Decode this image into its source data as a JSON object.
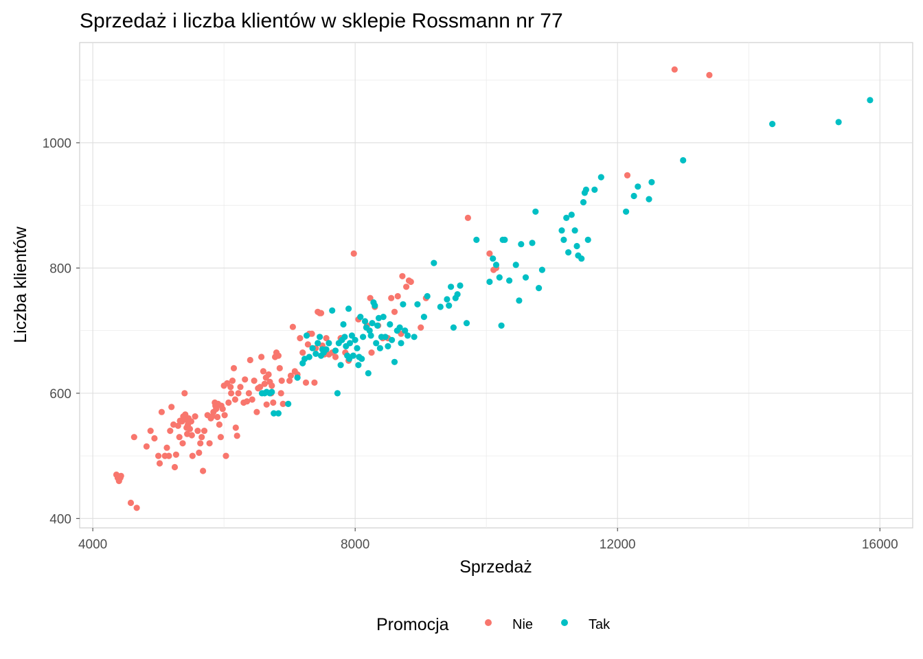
{
  "chart_data": {
    "type": "scatter",
    "title": "Sprzedaż i liczba klientów w sklepie Rossmann nr 77",
    "xlabel": "Sprzedaż",
    "ylabel": "Liczba klientów",
    "xlim": [
      3800,
      16500
    ],
    "ylim": [
      385,
      1160
    ],
    "x_ticks": [
      4000,
      8000,
      12000,
      16000
    ],
    "y_ticks": [
      400,
      600,
      800,
      1000
    ],
    "x_tick_labels": [
      "4000",
      "8000",
      "12000",
      "16000"
    ],
    "y_tick_labels": [
      "400",
      "600",
      "800",
      "1000"
    ],
    "grid": true,
    "legend": {
      "title": "Promocja",
      "position": "bottom",
      "entries": [
        {
          "label": "Nie",
          "color": "#F8766D"
        },
        {
          "label": "Tak",
          "color": "#00BFC4"
        }
      ]
    },
    "series": [
      {
        "name": "Nie",
        "color": "#F8766D",
        "points": [
          [
            4360,
            470
          ],
          [
            4400,
            460
          ],
          [
            4420,
            465
          ],
          [
            4430,
            468
          ],
          [
            4380,
            465
          ],
          [
            4580,
            425
          ],
          [
            4670,
            417
          ],
          [
            4630,
            530
          ],
          [
            4820,
            515
          ],
          [
            4880,
            540
          ],
          [
            4940,
            528
          ],
          [
            5000,
            500
          ],
          [
            5020,
            488
          ],
          [
            5050,
            570
          ],
          [
            5100,
            500
          ],
          [
            5130,
            513
          ],
          [
            5160,
            500
          ],
          [
            5180,
            540
          ],
          [
            5200,
            578
          ],
          [
            5230,
            550
          ],
          [
            5250,
            482
          ],
          [
            5270,
            502
          ],
          [
            5300,
            548
          ],
          [
            5320,
            530
          ],
          [
            5330,
            556
          ],
          [
            5360,
            555
          ],
          [
            5370,
            520
          ],
          [
            5380,
            563
          ],
          [
            5400,
            600
          ],
          [
            5410,
            566
          ],
          [
            5420,
            558
          ],
          [
            5430,
            545
          ],
          [
            5440,
            535
          ],
          [
            5450,
            550
          ],
          [
            5460,
            560
          ],
          [
            5480,
            543
          ],
          [
            5500,
            555
          ],
          [
            5510,
            533
          ],
          [
            5520,
            500
          ],
          [
            5560,
            563
          ],
          [
            5600,
            540
          ],
          [
            5620,
            505
          ],
          [
            5640,
            520
          ],
          [
            5660,
            530
          ],
          [
            5680,
            476
          ],
          [
            5700,
            540
          ],
          [
            5750,
            565
          ],
          [
            5780,
            520
          ],
          [
            5800,
            560
          ],
          [
            5820,
            563
          ],
          [
            5840,
            570
          ],
          [
            5860,
            585
          ],
          [
            5870,
            580
          ],
          [
            5880,
            575
          ],
          [
            5900,
            562
          ],
          [
            5910,
            583
          ],
          [
            5930,
            550
          ],
          [
            5950,
            530
          ],
          [
            5960,
            580
          ],
          [
            5980,
            575
          ],
          [
            6000,
            612
          ],
          [
            6010,
            565
          ],
          [
            6030,
            500
          ],
          [
            6050,
            616
          ],
          [
            6070,
            585
          ],
          [
            6100,
            610
          ],
          [
            6110,
            600
          ],
          [
            6130,
            620
          ],
          [
            6150,
            640
          ],
          [
            6170,
            590
          ],
          [
            6180,
            545
          ],
          [
            6200,
            532
          ],
          [
            6220,
            600
          ],
          [
            6250,
            610
          ],
          [
            6300,
            585
          ],
          [
            6320,
            622
          ],
          [
            6350,
            587
          ],
          [
            6380,
            600
          ],
          [
            6400,
            653
          ],
          [
            6430,
            590
          ],
          [
            6460,
            620
          ],
          [
            6500,
            570
          ],
          [
            6520,
            608
          ],
          [
            6550,
            610
          ],
          [
            6570,
            658
          ],
          [
            6600,
            635
          ],
          [
            6620,
            615
          ],
          [
            6640,
            625
          ],
          [
            6650,
            582
          ],
          [
            6680,
            630
          ],
          [
            6700,
            618
          ],
          [
            6720,
            600
          ],
          [
            6730,
            612
          ],
          [
            6750,
            585
          ],
          [
            6780,
            658
          ],
          [
            6800,
            665
          ],
          [
            6830,
            660
          ],
          [
            6850,
            640
          ],
          [
            6870,
            600
          ],
          [
            6880,
            620
          ],
          [
            6900,
            583
          ],
          [
            7000,
            620
          ],
          [
            7020,
            628
          ],
          [
            7050,
            706
          ],
          [
            7080,
            635
          ],
          [
            7120,
            630
          ],
          [
            7160,
            688
          ],
          [
            7200,
            665
          ],
          [
            7250,
            617
          ],
          [
            7280,
            678
          ],
          [
            7300,
            695
          ],
          [
            7340,
            695
          ],
          [
            7380,
            617
          ],
          [
            7400,
            672
          ],
          [
            7430,
            730
          ],
          [
            7460,
            728
          ],
          [
            7480,
            728
          ],
          [
            7500,
            676
          ],
          [
            7530,
            662
          ],
          [
            7560,
            688
          ],
          [
            7600,
            662
          ],
          [
            7650,
            665
          ],
          [
            7700,
            658
          ],
          [
            7780,
            688
          ],
          [
            7850,
            665
          ],
          [
            7900,
            652
          ],
          [
            7980,
            823
          ],
          [
            8050,
            718
          ],
          [
            8180,
            708
          ],
          [
            8230,
            752
          ],
          [
            8250,
            665
          ],
          [
            8300,
            738
          ],
          [
            8350,
            708
          ],
          [
            8420,
            688
          ],
          [
            8500,
            688
          ],
          [
            8550,
            752
          ],
          [
            8600,
            730
          ],
          [
            8650,
            755
          ],
          [
            8700,
            695
          ],
          [
            8720,
            787
          ],
          [
            8780,
            770
          ],
          [
            8820,
            780
          ],
          [
            8850,
            778
          ],
          [
            9000,
            705
          ],
          [
            9080,
            752
          ],
          [
            9720,
            880
          ],
          [
            10050,
            823
          ],
          [
            10110,
            797
          ],
          [
            10150,
            800
          ],
          [
            12150,
            948
          ],
          [
            12870,
            1117
          ],
          [
            13400,
            1108
          ]
        ]
      },
      {
        "name": "Tak",
        "color": "#00BFC4",
        "points": [
          [
            6580,
            600
          ],
          [
            6620,
            600
          ],
          [
            6650,
            602
          ],
          [
            6700,
            600
          ],
          [
            6730,
            602
          ],
          [
            6760,
            568
          ],
          [
            6830,
            568
          ],
          [
            6980,
            583
          ],
          [
            7120,
            625
          ],
          [
            7200,
            648
          ],
          [
            7230,
            655
          ],
          [
            7260,
            692
          ],
          [
            7300,
            658
          ],
          [
            7350,
            672
          ],
          [
            7400,
            663
          ],
          [
            7430,
            680
          ],
          [
            7460,
            690
          ],
          [
            7480,
            660
          ],
          [
            7500,
            670
          ],
          [
            7520,
            665
          ],
          [
            7560,
            670
          ],
          [
            7600,
            680
          ],
          [
            7650,
            732
          ],
          [
            7700,
            668
          ],
          [
            7730,
            600
          ],
          [
            7750,
            680
          ],
          [
            7780,
            645
          ],
          [
            7800,
            685
          ],
          [
            7820,
            710
          ],
          [
            7840,
            690
          ],
          [
            7860,
            675
          ],
          [
            7880,
            660
          ],
          [
            7900,
            735
          ],
          [
            7910,
            655
          ],
          [
            7920,
            680
          ],
          [
            7950,
            692
          ],
          [
            7970,
            660
          ],
          [
            8000,
            685
          ],
          [
            8030,
            672
          ],
          [
            8050,
            645
          ],
          [
            8060,
            658
          ],
          [
            8080,
            722
          ],
          [
            8100,
            655
          ],
          [
            8120,
            690
          ],
          [
            8150,
            715
          ],
          [
            8170,
            705
          ],
          [
            8200,
            632
          ],
          [
            8220,
            700
          ],
          [
            8240,
            692
          ],
          [
            8260,
            712
          ],
          [
            8280,
            745
          ],
          [
            8300,
            740
          ],
          [
            8320,
            680
          ],
          [
            8340,
            708
          ],
          [
            8360,
            720
          ],
          [
            8380,
            672
          ],
          [
            8400,
            690
          ],
          [
            8430,
            722
          ],
          [
            8460,
            690
          ],
          [
            8500,
            675
          ],
          [
            8530,
            710
          ],
          [
            8560,
            685
          ],
          [
            8600,
            650
          ],
          [
            8640,
            700
          ],
          [
            8680,
            705
          ],
          [
            8700,
            680
          ],
          [
            8730,
            742
          ],
          [
            8760,
            700
          ],
          [
            8800,
            692
          ],
          [
            8900,
            690
          ],
          [
            8950,
            742
          ],
          [
            9050,
            722
          ],
          [
            9100,
            755
          ],
          [
            9200,
            808
          ],
          [
            9300,
            738
          ],
          [
            9400,
            750
          ],
          [
            9430,
            740
          ],
          [
            9460,
            770
          ],
          [
            9500,
            705
          ],
          [
            9530,
            752
          ],
          [
            9560,
            758
          ],
          [
            9600,
            772
          ],
          [
            9700,
            712
          ],
          [
            9850,
            845
          ],
          [
            10050,
            778
          ],
          [
            10100,
            815
          ],
          [
            10150,
            805
          ],
          [
            10200,
            785
          ],
          [
            10230,
            708
          ],
          [
            10250,
            845
          ],
          [
            10280,
            845
          ],
          [
            10350,
            780
          ],
          [
            10450,
            805
          ],
          [
            10500,
            748
          ],
          [
            10530,
            838
          ],
          [
            10600,
            785
          ],
          [
            10700,
            840
          ],
          [
            10750,
            890
          ],
          [
            10800,
            768
          ],
          [
            10850,
            797
          ],
          [
            11150,
            860
          ],
          [
            11180,
            845
          ],
          [
            11220,
            880
          ],
          [
            11250,
            825
          ],
          [
            11300,
            885
          ],
          [
            11350,
            860
          ],
          [
            11380,
            835
          ],
          [
            11400,
            820
          ],
          [
            11450,
            815
          ],
          [
            11480,
            905
          ],
          [
            11500,
            920
          ],
          [
            11520,
            925
          ],
          [
            11550,
            845
          ],
          [
            11650,
            925
          ],
          [
            11750,
            945
          ],
          [
            12130,
            890
          ],
          [
            12250,
            915
          ],
          [
            12310,
            930
          ],
          [
            12480,
            910
          ],
          [
            12520,
            937
          ],
          [
            13000,
            972
          ],
          [
            14360,
            1030
          ],
          [
            15370,
            1033
          ],
          [
            15850,
            1068
          ]
        ]
      }
    ]
  }
}
